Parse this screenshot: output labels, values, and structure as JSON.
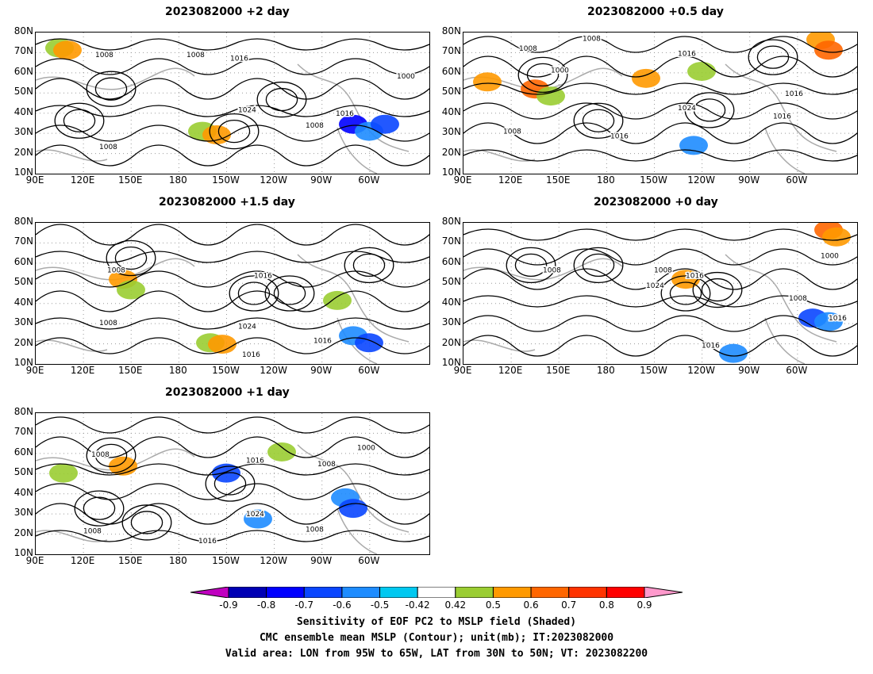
{
  "panels": [
    {
      "title": "2023082000  +2 day"
    },
    {
      "title": "2023082000  +0.5  day"
    },
    {
      "title": "2023082000  +1.5  day"
    },
    {
      "title": "2023082000  +0  day"
    },
    {
      "title": "2023082000  +1  day"
    }
  ],
  "lat_labels": [
    "80N",
    "70N",
    "60N",
    "50N",
    "40N",
    "30N",
    "20N",
    "10N"
  ],
  "lon_labels": [
    "90E",
    "120E",
    "150E",
    "180",
    "150W",
    "120W",
    "90W",
    "60W"
  ],
  "contour_labels": [
    "1000",
    "1008",
    "1016",
    "1024"
  ],
  "colorbar": {
    "labels": [
      "-0.9",
      "-0.8",
      "-0.7",
      "-0.6",
      "-0.5",
      "-0.42",
      "0.42",
      "0.5",
      "0.6",
      "0.7",
      "0.8",
      "0.9"
    ],
    "colors": [
      "#c000c0",
      "#0000b4",
      "#0000ff",
      "#0a46ff",
      "#1e8cff",
      "#00c8f0",
      "#ffffff",
      "#9acd32",
      "#ff9900",
      "#ff6600",
      "#ff3300",
      "#ff0000",
      "#ff99cc"
    ]
  },
  "captions": {
    "line1": "Sensitivity of EOF PC2 to MSLP field (Shaded)",
    "line2": "CMC ensemble mean MSLP (Contour); unit(mb); IT:2023082000",
    "line3": "Valid area: LON from 95W to 65W, LAT from 30N to 50N; VT: 2023082200"
  }
}
